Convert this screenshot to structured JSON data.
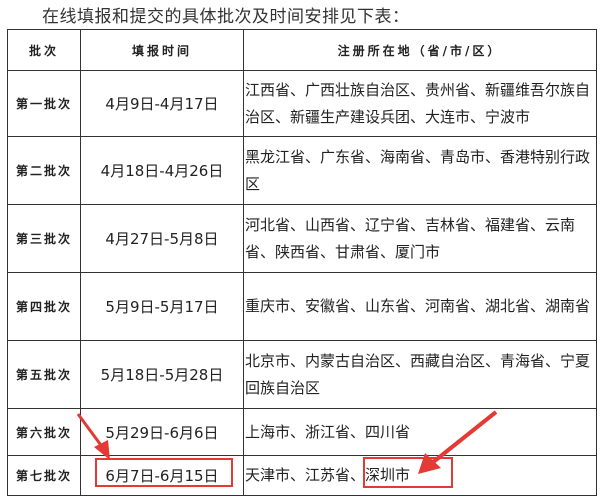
{
  "intro": "在线填报和提交的具体批次及时间安排见下表：",
  "table": {
    "headers": [
      "批次",
      "填报时间",
      "注册所在地（省/市/区）"
    ],
    "rows": [
      {
        "batch": "第一批次",
        "time": "4月9日-4月17日",
        "regions": "江西省、广西壮族自治区、贵州省、新疆维吾尔族自治区、新疆生产建设兵团、大连市、宁波市"
      },
      {
        "batch": "第二批次",
        "time": "4月18日-4月26日",
        "regions": "黑龙江省、广东省、海南省、青岛市、香港特别行政区"
      },
      {
        "batch": "第三批次",
        "time": "4月27日-5月8日",
        "regions": "河北省、山西省、辽宁省、吉林省、福建省、云南省、陕西省、甘肃省、厦门市"
      },
      {
        "batch": "第四批次",
        "time": "5月9日-5月17日",
        "regions": "重庆市、安徽省、山东省、河南省、湖北省、湖南省"
      },
      {
        "batch": "第五批次",
        "time": "5月18日-5月28日",
        "regions": "北京市、内蒙古自治区、西藏自治区、青海省、宁夏回族自治区"
      },
      {
        "batch": "第六批次",
        "time": "5月29日-6月6日",
        "regions": "上海市、浙江省、四川省"
      },
      {
        "batch": "第七批次",
        "time": "6月7日-6月15日",
        "regions": "天津市、江苏省、深圳市"
      }
    ]
  },
  "annotation_color": "#e53935"
}
